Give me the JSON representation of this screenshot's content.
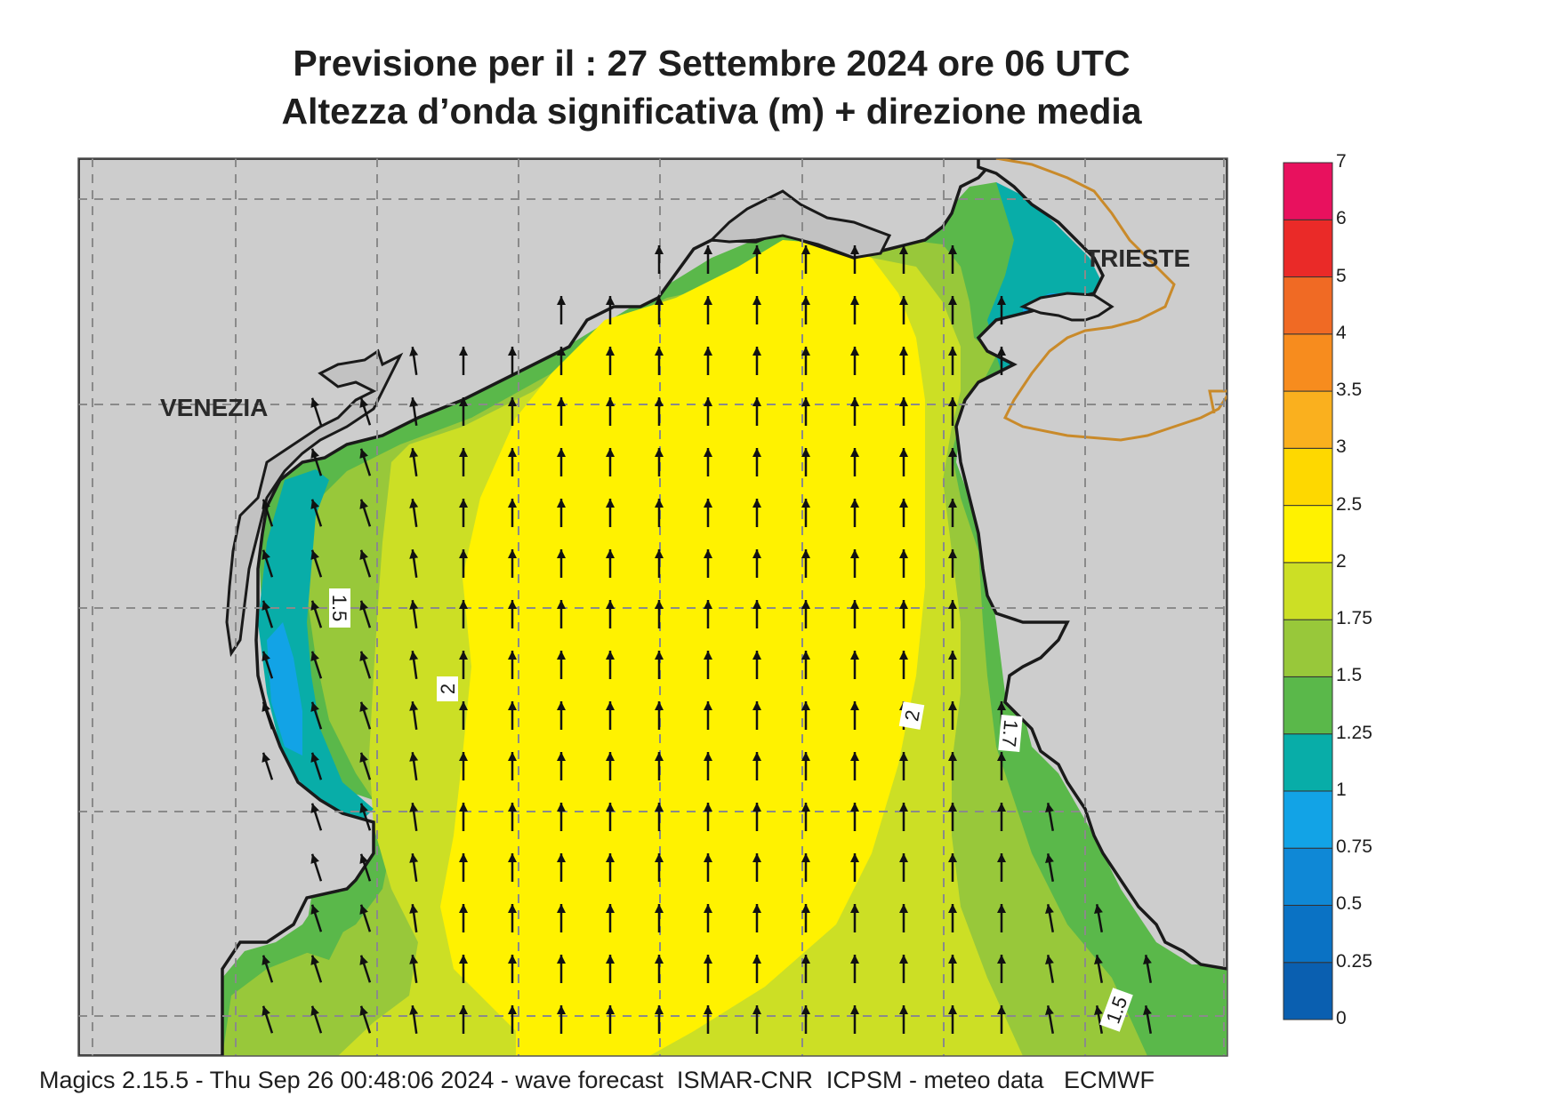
{
  "header": {
    "line1": "Previsione per il  :  27 Settembre 2024   ore 06 UTC",
    "line2": "Altezza d’onda significativa (m) + direzione media"
  },
  "cities": {
    "venezia": "VENEZIA",
    "trieste": "TRIESTE"
  },
  "contour_labels": [
    "1.5",
    "2",
    "2",
    "1.7",
    "1.5"
  ],
  "colorbar": {
    "levels": [
      "0",
      "0.25",
      "0.5",
      "0.75",
      "1",
      "1.25",
      "1.5",
      "1.75",
      "2",
      "2.5",
      "3",
      "3.5",
      "4",
      "5",
      "6",
      "7"
    ],
    "colors": [
      "#0a5fb0",
      "#0a72c4",
      "#0f88d6",
      "#12a3e6",
      "#08ada8",
      "#5ab84a",
      "#98c83a",
      "#ccdf25",
      "#fff200",
      "#fed800",
      "#fab01e",
      "#f78c1e",
      "#f06a24",
      "#ea2a28",
      "#e8115e"
    ]
  },
  "map_colors": {
    "land": "#cdcdcd",
    "lagoon": "#c2c2c2",
    "coast": "#1a1a1a",
    "border": "#c98a2a",
    "grid": "#8a8a8a",
    "arrow": "#111111"
  },
  "wave_direction": "north",
  "footer": "Magics 2.15.5 - Thu Sep 26 00:48:06 2024 - wave forecast  ISMAR-CNR  ICPSM - meteo data   ECMWF"
}
